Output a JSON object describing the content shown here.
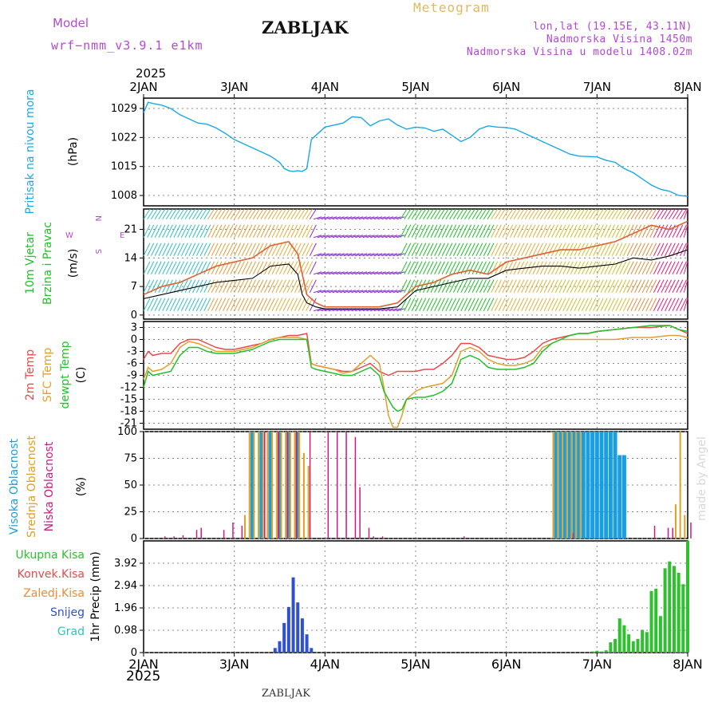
{
  "header": {
    "model_label": "Model",
    "model_version": "wrf−nmm_v3.9.1 e1km",
    "site": "ZABLJAK",
    "title": "Meteogram",
    "lonlat": "lon,lat (19.15E, 43.11N)",
    "elevation": "Nadmorska Visina 1450m",
    "model_elevation": "Nadmorska Visina u modelu 1408.02m"
  },
  "footer": {
    "site": "ZABLJAK"
  },
  "watermark": "made by Angel",
  "time_axis": {
    "year": "2025",
    "ticks": [
      "2JAN",
      "3JAN",
      "4JAN",
      "5JAN",
      "6JAN",
      "7JAN",
      "8JAN"
    ],
    "start_day": 2,
    "end_day": 8
  },
  "colors": {
    "pressure": "#1aa8e6",
    "temp2m": "#e84a4a",
    "sfc": "#e0a030",
    "dewpt": "#22c02a",
    "high": "#1a9ee0",
    "mid": "#e0a020",
    "low": "#cc1a80",
    "precip_total": "#2ec02e",
    "precip_snow": "#3050d0",
    "gust": "#e06030",
    "wind": "#000000"
  },
  "wind_panel": {
    "labels": [
      "10m Vjetar",
      "Brzina i Pravac"
    ],
    "unit": "(m/s)",
    "compass": {
      "north": "N",
      "south": "S",
      "west": "W",
      "east": "E"
    }
  },
  "temp_panel": {
    "labels": [
      {
        "text": "2m Temp",
        "color": "#e84a4a"
      },
      {
        "text": "SFC Temp",
        "color": "#e0a030"
      },
      {
        "text": "dewpt Temp",
        "color": "#22c02a"
      }
    ],
    "unit": "(C)"
  },
  "cloud_panel": {
    "labels": [
      {
        "text": "Visoka Oblacnost",
        "color": "#1a9ee0"
      },
      {
        "text": "Srednja Oblacnost",
        "color": "#e0a020"
      },
      {
        "text": "Niska Oblacnost",
        "color": "#cc1a80"
      }
    ],
    "unit": "(%)"
  },
  "precip_panel": {
    "legend": [
      {
        "text": "Ukupna Kisa",
        "color": "#2ec02e"
      },
      {
        "text": "Konvek.Kisa",
        "color": "#e84a4a"
      },
      {
        "text": "Zaledj.Kisa",
        "color": "#f08a30"
      },
      {
        "text": "Snijeg",
        "color": "#3050d0"
      },
      {
        "text": "Grad",
        "color": "#30c0c0"
      }
    ],
    "unit": "1hr Precip (mm)"
  },
  "chart_data": [
    {
      "type": "line",
      "name": "pressure",
      "ylabel": "Pritisak na nivou mora",
      "unit": "(hPa)",
      "yticks": [
        "1008",
        "1015",
        "1022",
        "1029"
      ],
      "ylim": [
        1005.5,
        1031.5
      ],
      "x": [
        2.0,
        2.05,
        2.1,
        2.2,
        2.3,
        2.4,
        2.5,
        2.6,
        2.7,
        2.8,
        2.9,
        3.0,
        3.1,
        3.2,
        3.3,
        3.4,
        3.5,
        3.55,
        3.6,
        3.65,
        3.7,
        3.75,
        3.8,
        3.85,
        3.9,
        4.0,
        4.1,
        4.2,
        4.3,
        4.4,
        4.5,
        4.6,
        4.7,
        4.8,
        4.9,
        5.0,
        5.1,
        5.2,
        5.3,
        5.4,
        5.5,
        5.6,
        5.7,
        5.8,
        5.9,
        6.0,
        6.1,
        6.2,
        6.3,
        6.4,
        6.5,
        6.6,
        6.7,
        6.8,
        6.9,
        7.0,
        7.1,
        7.2,
        7.3,
        7.4,
        7.5,
        7.6,
        7.7,
        7.8,
        7.9,
        8.0
      ],
      "values": [
        1028,
        1030.5,
        1030.2,
        1029.8,
        1029,
        1027.5,
        1026.5,
        1025.5,
        1025.2,
        1024.3,
        1023,
        1021.5,
        1020.5,
        1019.5,
        1018.5,
        1017.5,
        1016,
        1014.5,
        1014,
        1013.8,
        1014,
        1013.8,
        1014.5,
        1021.5,
        1022.5,
        1024.5,
        1025,
        1025.5,
        1027,
        1026.8,
        1024.8,
        1026,
        1026.5,
        1025,
        1024,
        1024.5,
        1024.3,
        1023.5,
        1024,
        1022.5,
        1021,
        1022,
        1024,
        1024.8,
        1024.5,
        1024.4,
        1024,
        1023,
        1022,
        1021,
        1020,
        1019,
        1018,
        1017.5,
        1017.4,
        1017.3,
        1016.5,
        1016,
        1014.5,
        1013.5,
        1012,
        1010.5,
        1009.5,
        1009,
        1008,
        1007.8
      ]
    },
    {
      "type": "line",
      "name": "wind",
      "yticks": [
        "0",
        "7",
        "14",
        "21"
      ],
      "ylim": [
        -1,
        26
      ],
      "series": [
        {
          "name": "speed",
          "x": [
            2.0,
            2.2,
            2.4,
            2.6,
            2.8,
            3.0,
            3.2,
            3.4,
            3.6,
            3.7,
            3.75,
            3.8,
            3.9,
            4.0,
            4.2,
            4.4,
            4.6,
            4.8,
            5.0,
            5.2,
            5.4,
            5.6,
            5.8,
            6.0,
            6.2,
            6.4,
            6.6,
            6.8,
            7.0,
            7.2,
            7.4,
            7.6,
            7.8,
            8.0
          ],
          "values": [
            4,
            5,
            6,
            7,
            8,
            8.5,
            9,
            12,
            12.5,
            10,
            5,
            3,
            2,
            1.5,
            1.5,
            1.5,
            1.5,
            2,
            6,
            7,
            8,
            9,
            9,
            11,
            11.5,
            12,
            12,
            11.5,
            12,
            12.5,
            14,
            13.5,
            14.5,
            16
          ]
        },
        {
          "name": "gust",
          "x": [
            2.0,
            2.2,
            2.4,
            2.6,
            2.8,
            3.0,
            3.2,
            3.4,
            3.6,
            3.7,
            3.8,
            3.9,
            4.0,
            4.2,
            4.4,
            4.6,
            4.8,
            5.0,
            5.2,
            5.4,
            5.6,
            5.8,
            6.0,
            6.2,
            6.4,
            6.6,
            6.8,
            7.0,
            7.2,
            7.4,
            7.6,
            7.8,
            8.0
          ],
          "values": [
            5,
            7,
            8,
            10,
            12,
            13,
            14,
            17,
            18,
            15,
            5,
            3,
            2,
            2,
            2,
            2,
            3,
            7,
            8,
            10,
            11,
            10,
            13,
            14,
            15,
            16,
            16,
            17,
            18,
            20,
            22,
            21,
            23
          ]
        }
      ]
    },
    {
      "type": "line",
      "name": "temperature",
      "yticks": [
        "3",
        "0",
        "-3",
        "-6",
        "-9",
        "-12",
        "-15",
        "-18",
        "-21"
      ],
      "ylim": [
        -22.5,
        4.5
      ],
      "series": [
        {
          "name": "2m Temp",
          "x": [
            2.0,
            2.05,
            2.1,
            2.2,
            2.3,
            2.4,
            2.5,
            2.6,
            2.7,
            2.8,
            2.9,
            3.0,
            3.1,
            3.2,
            3.3,
            3.4,
            3.5,
            3.6,
            3.7,
            3.8,
            3.85,
            3.9,
            4.0,
            4.1,
            4.2,
            4.3,
            4.4,
            4.5,
            4.6,
            4.7,
            4.8,
            4.9,
            5.0,
            5.1,
            5.2,
            5.3,
            5.4,
            5.5,
            5.6,
            5.7,
            5.8,
            5.9,
            6.0,
            6.1,
            6.2,
            6.3,
            6.4,
            6.5,
            6.6,
            6.7,
            6.8,
            6.9,
            7.0,
            7.2,
            7.4,
            7.6,
            7.8,
            7.9,
            8.0
          ],
          "values": [
            -5,
            -3,
            -4,
            -3.5,
            -3.5,
            -1,
            0,
            0,
            -1,
            -2,
            -2.5,
            -2.5,
            -2,
            -1.5,
            -1,
            0,
            0.5,
            1,
            1,
            1.5,
            -6,
            -6.5,
            -7,
            -7.5,
            -8,
            -8,
            -7,
            -6,
            -8,
            -9,
            -8,
            -8,
            -8,
            -7.5,
            -7.5,
            -6,
            -4,
            -1,
            -1,
            -2,
            -4,
            -4.5,
            -5,
            -5,
            -4.5,
            -3,
            -1,
            0,
            0.5,
            1,
            1.5,
            1.5,
            2,
            2.5,
            3,
            3,
            3.5,
            2.5,
            1.5
          ]
        },
        {
          "name": "SFC Temp",
          "x": [
            2.0,
            2.05,
            2.1,
            2.2,
            2.3,
            2.4,
            2.5,
            2.6,
            2.7,
            2.8,
            2.9,
            3.0,
            3.1,
            3.2,
            3.3,
            3.4,
            3.5,
            3.6,
            3.7,
            3.8,
            3.85,
            3.9,
            4.0,
            4.1,
            4.2,
            4.3,
            4.4,
            4.5,
            4.6,
            4.65,
            4.7,
            4.75,
            4.8,
            4.85,
            4.9,
            5.0,
            5.1,
            5.2,
            5.3,
            5.4,
            5.5,
            5.6,
            5.7,
            5.8,
            5.9,
            6.0,
            6.1,
            6.2,
            6.3,
            6.4,
            6.5,
            6.6,
            6.7,
            6.8,
            6.9,
            7.0,
            7.2,
            7.4,
            7.6,
            7.8,
            7.9,
            8.0
          ],
          "values": [
            -10,
            -7,
            -8,
            -7.5,
            -6,
            -2,
            -0.5,
            -1,
            -2,
            -3,
            -3,
            -3,
            -2.5,
            -2,
            -1,
            0,
            0.5,
            0.5,
            0.5,
            0,
            -6,
            -6.5,
            -7,
            -7.5,
            -8.5,
            -8,
            -6,
            -4,
            -6,
            -12,
            -19,
            -22,
            -22,
            -19,
            -15,
            -13,
            -12,
            -11.5,
            -11,
            -9,
            -3,
            -2,
            -3,
            -5,
            -6,
            -6.5,
            -6.5,
            -6,
            -5,
            -2,
            -1,
            0,
            0,
            0,
            0,
            0,
            0,
            0.5,
            0.5,
            1,
            1,
            0.5
          ]
        },
        {
          "name": "dewpt Temp",
          "x": [
            2.0,
            2.05,
            2.1,
            2.2,
            2.3,
            2.4,
            2.5,
            2.6,
            2.7,
            2.8,
            2.9,
            3.0,
            3.1,
            3.2,
            3.3,
            3.4,
            3.5,
            3.6,
            3.7,
            3.8,
            3.85,
            3.9,
            4.0,
            4.1,
            4.2,
            4.3,
            4.4,
            4.5,
            4.6,
            4.65,
            4.7,
            4.75,
            4.8,
            4.85,
            4.9,
            5.0,
            5.1,
            5.2,
            5.3,
            5.4,
            5.5,
            5.6,
            5.7,
            5.8,
            5.9,
            6.0,
            6.1,
            6.2,
            6.3,
            6.4,
            6.5,
            6.6,
            6.7,
            6.8,
            6.9,
            7.0,
            7.2,
            7.4,
            7.6,
            7.8,
            7.9,
            8.0
          ],
          "values": [
            -12,
            -8,
            -9,
            -8.5,
            -8,
            -4,
            -2,
            -2,
            -3,
            -3.5,
            -3.5,
            -3.5,
            -3,
            -2.5,
            -1.5,
            -0.5,
            0,
            0,
            0,
            0,
            -7,
            -7.5,
            -8,
            -8.5,
            -9,
            -9,
            -8,
            -7,
            -9,
            -13,
            -15,
            -17,
            -18,
            -17.5,
            -15,
            -14.5,
            -14.5,
            -14,
            -13,
            -11,
            -5,
            -4,
            -5,
            -7,
            -7.5,
            -7.5,
            -7.5,
            -7,
            -6,
            -3,
            -1,
            0,
            1,
            1.5,
            1.5,
            2,
            2.5,
            3,
            3.5,
            3.5,
            2.5,
            2
          ]
        }
      ]
    },
    {
      "type": "bar",
      "name": "cloud_cover",
      "yticks": [
        "0",
        "25",
        "50",
        "75",
        "100"
      ],
      "ylim": [
        0,
        100
      ],
      "series": [
        {
          "name": "Visoka Oblacnost",
          "x": [
            3.2,
            3.3,
            3.4,
            3.5,
            3.6,
            3.7,
            6.55,
            6.6,
            6.65,
            6.7,
            6.75,
            6.8,
            6.85,
            6.9,
            6.95,
            7.0,
            7.05,
            7.1,
            7.15,
            7.2,
            7.25,
            7.3,
            7.35
          ],
          "values": [
            100,
            100,
            100,
            100,
            100,
            100,
            100,
            100,
            100,
            100,
            100,
            100,
            100,
            100,
            100,
            100,
            100,
            100,
            100,
            100,
            78,
            78,
            0
          ]
        },
        {
          "name": "Srednja Oblacnost",
          "x": [
            3.1,
            3.15,
            3.2,
            3.25,
            3.3,
            3.35,
            3.4,
            3.45,
            3.5,
            3.55,
            3.6,
            3.65,
            3.7,
            3.75,
            3.8,
            6.5,
            6.55,
            6.6,
            6.65,
            6.7,
            6.75,
            6.8,
            7.85,
            7.9,
            7.95
          ],
          "values": [
            22,
            100,
            100,
            100,
            100,
            100,
            100,
            100,
            100,
            100,
            100,
            100,
            100,
            80,
            68,
            100,
            100,
            100,
            100,
            100,
            100,
            100,
            32,
            100,
            22
          ]
        },
        {
          "name": "Niska Oblacnost",
          "x": [
            2.2,
            2.3,
            2.4,
            2.55,
            2.6,
            2.85,
            2.95,
            3.05,
            3.3,
            3.45,
            3.55,
            3.65,
            3.8,
            4.0,
            4.1,
            4.2,
            4.3,
            4.35,
            4.45,
            4.5,
            4.6,
            5.5,
            6.7,
            7.6,
            7.75,
            7.8,
            8.0
          ],
          "values": [
            2,
            2,
            3,
            8,
            10,
            8,
            15,
            12,
            100,
            100,
            100,
            100,
            100,
            100,
            100,
            100,
            95,
            48,
            10,
            2,
            2,
            2,
            5,
            12,
            10,
            10,
            15
          ]
        }
      ]
    },
    {
      "type": "bar",
      "name": "precipitation",
      "yticks": [
        "0",
        "0.98",
        "1.96",
        "2.94",
        "3.92"
      ],
      "ylim": [
        0,
        4.9
      ],
      "series": [
        {
          "name": "Ukupna Kisa",
          "x": [
            6.95,
            7.0,
            7.05,
            7.1,
            7.15,
            7.2,
            7.25,
            7.3,
            7.35,
            7.4,
            7.45,
            7.5,
            7.55,
            7.6,
            7.65,
            7.7,
            7.75,
            7.8,
            7.85,
            7.9,
            7.95,
            8.0
          ],
          "values": [
            0.05,
            0.08,
            0.05,
            0.1,
            0.45,
            0.6,
            1.5,
            1.2,
            0.8,
            0.5,
            0.6,
            1.0,
            0.9,
            2.7,
            2.8,
            1.6,
            3.7,
            4.0,
            3.8,
            3.5,
            3.0,
            5.2
          ]
        },
        {
          "name": "Snijeg",
          "x": [
            3.45,
            3.5,
            3.55,
            3.6,
            3.65,
            3.7,
            3.75,
            3.8,
            3.85
          ],
          "values": [
            0.2,
            0.5,
            1.3,
            2.0,
            3.3,
            2.2,
            1.5,
            0.8,
            0.2
          ]
        }
      ]
    }
  ]
}
